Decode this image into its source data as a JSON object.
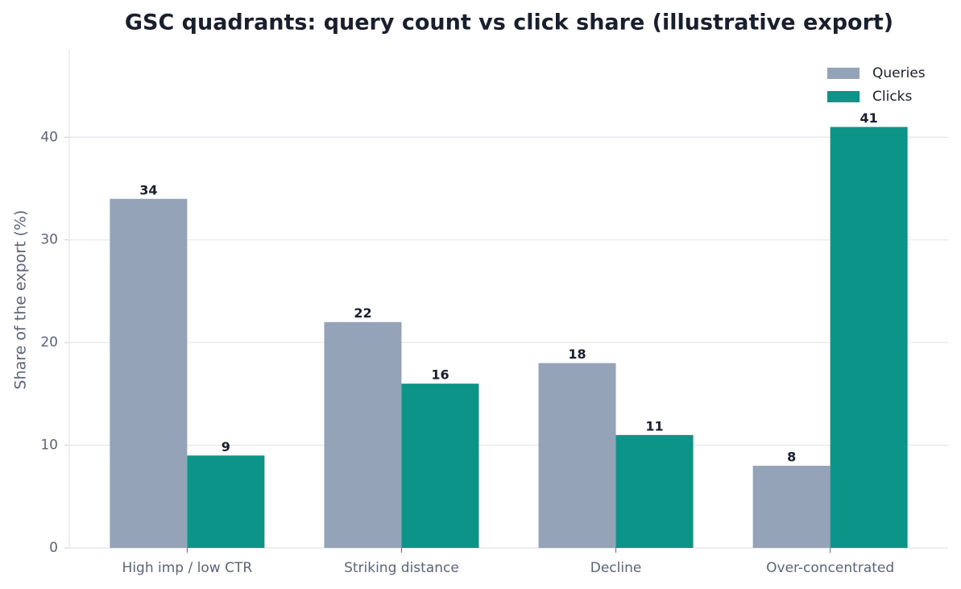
{
  "chart_data": {
    "type": "bar",
    "title": "GSC quadrants: query count vs click share (illustrative export)",
    "ylabel": "Share of the export (%)",
    "categories": [
      "High imp / low CTR",
      "Striking distance",
      "Decline",
      "Over-concentrated"
    ],
    "series": [
      {
        "name": "Queries",
        "color": "#94a3b8",
        "values": [
          34,
          22,
          18,
          8
        ]
      },
      {
        "name": "Clicks",
        "color": "#0d9488",
        "values": [
          9,
          16,
          11,
          41
        ]
      }
    ],
    "ylim": [
      0,
      48.5
    ],
    "yticks": [
      0,
      10,
      20,
      30,
      40
    ],
    "grid": true,
    "legend": "upper right"
  }
}
